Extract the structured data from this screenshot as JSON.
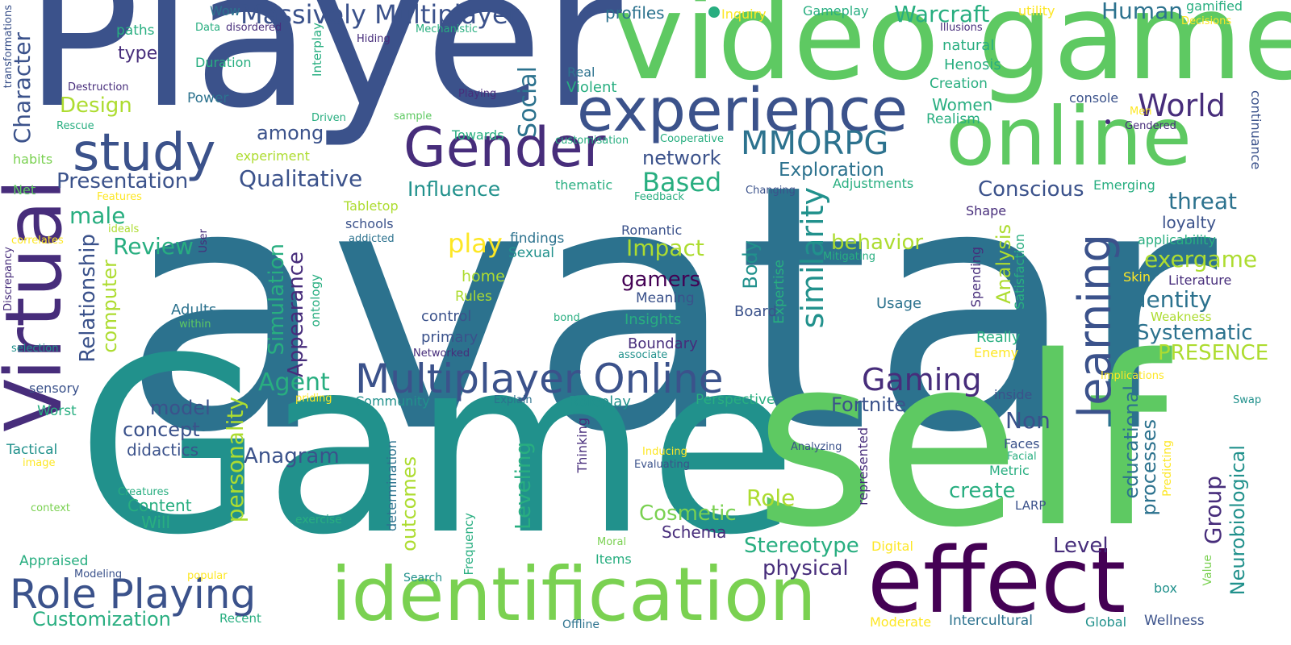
{
  "palette": {
    "purple": "#472d7b",
    "dark_purple": "#440154",
    "indigo": "#3b528b",
    "blue": "#2c728e",
    "teal": "#21918c",
    "sea": "#28ae80",
    "green": "#5ec962",
    "light_green": "#7ad151",
    "lime": "#addc30",
    "yellow": "#fde725"
  },
  "words": [
    {
      "text": "avatar",
      "color": "blue"
    },
    {
      "text": "Player",
      "color": "indigo"
    },
    {
      "text": "Game",
      "color": "teal"
    },
    {
      "text": "self",
      "color": "green"
    },
    {
      "text": "video game",
      "color": "green"
    },
    {
      "text": "online",
      "color": "green"
    },
    {
      "text": "experience",
      "color": "indigo"
    },
    {
      "text": "effect",
      "color": "dark_purple"
    },
    {
      "text": "identification",
      "color": "light_green"
    },
    {
      "text": "Virtual",
      "color": "purple"
    },
    {
      "text": "study",
      "color": "indigo"
    },
    {
      "text": "Gender",
      "color": "purple"
    },
    {
      "text": "learning",
      "color": "indigo"
    },
    {
      "text": "Multiplayer Online",
      "color": "indigo"
    },
    {
      "text": "Role Playing",
      "color": "indigo"
    },
    {
      "text": "Massively Multiplayer",
      "color": "indigo"
    },
    {
      "text": "MMORPG",
      "color": "blue"
    },
    {
      "text": "Gaming",
      "color": "purple"
    },
    {
      "text": "World",
      "color": "purple"
    },
    {
      "text": "similarity",
      "color": "teal"
    },
    {
      "text": "Warcraft",
      "color": "sea"
    },
    {
      "text": "Human",
      "color": "blue"
    },
    {
      "text": "threat",
      "color": "blue"
    },
    {
      "text": "exergame",
      "color": "lime"
    },
    {
      "text": "identity",
      "color": "blue"
    },
    {
      "text": "Systematic",
      "color": "blue"
    },
    {
      "text": "PRESENCE",
      "color": "lime"
    },
    {
      "text": "Qualitative",
      "color": "indigo"
    },
    {
      "text": "Presentation",
      "color": "indigo"
    },
    {
      "text": "Based",
      "color": "sea"
    },
    {
      "text": "Influence",
      "color": "teal"
    },
    {
      "text": "Exploration",
      "color": "blue"
    },
    {
      "text": "Conscious",
      "color": "indigo"
    },
    {
      "text": "Character",
      "color": "indigo"
    },
    {
      "text": "Design",
      "color": "lime"
    },
    {
      "text": "Social",
      "color": "blue"
    },
    {
      "text": "among",
      "color": "indigo"
    },
    {
      "text": "network",
      "color": "indigo"
    },
    {
      "text": "male",
      "color": "sea"
    },
    {
      "text": "Review",
      "color": "sea"
    },
    {
      "text": "play",
      "color": "yellow"
    },
    {
      "text": "behavior",
      "color": "lime"
    },
    {
      "text": "Impact",
      "color": "lime"
    },
    {
      "text": "gamers",
      "color": "dark_purple"
    },
    {
      "text": "Agent",
      "color": "sea"
    },
    {
      "text": "Appearance",
      "color": "purple"
    },
    {
      "text": "Relationship",
      "color": "indigo"
    },
    {
      "text": "computer",
      "color": "lime"
    },
    {
      "text": "Simulation",
      "color": "sea"
    },
    {
      "text": "personality",
      "color": "lime"
    },
    {
      "text": "Fortnite",
      "color": "indigo"
    },
    {
      "text": "Non",
      "color": "indigo"
    },
    {
      "text": "Leveling",
      "color": "sea"
    },
    {
      "text": "Anagram",
      "color": "indigo"
    },
    {
      "text": "Role",
      "color": "lime"
    },
    {
      "text": "Cosmetic",
      "color": "light_green"
    },
    {
      "text": "Stereotype",
      "color": "sea"
    },
    {
      "text": "physical",
      "color": "purple"
    },
    {
      "text": "create",
      "color": "sea"
    },
    {
      "text": "Level",
      "color": "purple"
    },
    {
      "text": "Group",
      "color": "purple"
    },
    {
      "text": "Customization",
      "color": "sea"
    },
    {
      "text": "concept",
      "color": "indigo"
    },
    {
      "text": "model",
      "color": "indigo"
    },
    {
      "text": "didactics",
      "color": "indigo"
    },
    {
      "text": "outcomes",
      "color": "lime"
    },
    {
      "text": "Content",
      "color": "sea"
    },
    {
      "text": "Will",
      "color": "sea"
    },
    {
      "text": "Schema",
      "color": "purple"
    },
    {
      "text": "Body",
      "color": "teal"
    },
    {
      "text": "Analysis",
      "color": "lime"
    },
    {
      "text": "educational",
      "color": "blue"
    },
    {
      "text": "processes",
      "color": "blue"
    },
    {
      "text": "Neurobiological",
      "color": "teal"
    },
    {
      "text": "Adults",
      "color": "blue"
    },
    {
      "text": "Sexual",
      "color": "teal"
    },
    {
      "text": "findings",
      "color": "blue"
    },
    {
      "text": "Romantic",
      "color": "indigo"
    },
    {
      "text": "Boundary",
      "color": "purple"
    },
    {
      "text": "Insights",
      "color": "sea"
    },
    {
      "text": "Meaning",
      "color": "indigo"
    },
    {
      "text": "control",
      "color": "indigo"
    },
    {
      "text": "primary",
      "color": "indigo"
    },
    {
      "text": "Rules",
      "color": "lime"
    },
    {
      "text": "home",
      "color": "lime"
    },
    {
      "text": "Community",
      "color": "teal"
    },
    {
      "text": "Roleplay",
      "color": "teal"
    },
    {
      "text": "Perspective",
      "color": "sea"
    },
    {
      "text": "Tabletop",
      "color": "lime"
    },
    {
      "text": "schools",
      "color": "indigo"
    },
    {
      "text": "thematic",
      "color": "sea"
    },
    {
      "text": "Adjustments",
      "color": "sea"
    },
    {
      "text": "Emerging",
      "color": "sea"
    },
    {
      "text": "loyalty",
      "color": "indigo"
    },
    {
      "text": "applicability",
      "color": "sea"
    },
    {
      "text": "Literature",
      "color": "purple"
    },
    {
      "text": "Skin",
      "color": "yellow"
    },
    {
      "text": "Weakness",
      "color": "lime"
    },
    {
      "text": "Enemy",
      "color": "yellow"
    },
    {
      "text": "Really",
      "color": "sea"
    },
    {
      "text": "Usage",
      "color": "blue"
    },
    {
      "text": "Board",
      "color": "indigo"
    },
    {
      "text": "Expertise",
      "color": "sea"
    },
    {
      "text": "Shape",
      "color": "purple"
    },
    {
      "text": "Satisfaction",
      "color": "sea"
    },
    {
      "text": "Spending",
      "color": "purple"
    },
    {
      "text": "Women",
      "color": "sea"
    },
    {
      "text": "Realism",
      "color": "sea"
    },
    {
      "text": "Creation",
      "color": "sea"
    },
    {
      "text": "Henosis",
      "color": "sea"
    },
    {
      "text": "natural",
      "color": "sea"
    },
    {
      "text": "console",
      "color": "indigo"
    },
    {
      "text": "gamified",
      "color": "sea"
    },
    {
      "text": "utility",
      "color": "yellow"
    },
    {
      "text": "Decisions",
      "color": "yellow"
    },
    {
      "text": "Illusions",
      "color": "purple"
    },
    {
      "text": "Gameplay",
      "color": "sea"
    },
    {
      "text": "Inquiry",
      "color": "yellow"
    },
    {
      "text": "profiles",
      "color": "blue"
    },
    {
      "text": "Wow",
      "color": "blue"
    },
    {
      "text": "Mechanistic",
      "color": "sea"
    },
    {
      "text": "Hiding",
      "color": "purple"
    },
    {
      "text": "disordered",
      "color": "purple"
    },
    {
      "text": "Data",
      "color": "sea"
    },
    {
      "text": "Interplay",
      "color": "sea"
    },
    {
      "text": "paths",
      "color": "sea"
    },
    {
      "text": "type",
      "color": "purple"
    },
    {
      "text": "Duration",
      "color": "sea"
    },
    {
      "text": "Destruction",
      "color": "purple"
    },
    {
      "text": "Power",
      "color": "blue"
    },
    {
      "text": "Real",
      "color": "blue"
    },
    {
      "text": "Violent",
      "color": "sea"
    },
    {
      "text": "Playing",
      "color": "purple"
    },
    {
      "text": "Driven",
      "color": "sea"
    },
    {
      "text": "sample",
      "color": "green"
    },
    {
      "text": "Rescue",
      "color": "sea"
    },
    {
      "text": "experiment",
      "color": "lime"
    },
    {
      "text": "habits",
      "color": "light_green"
    },
    {
      "text": "Net",
      "color": "green"
    },
    {
      "text": "Features",
      "color": "yellow"
    },
    {
      "text": "ideals",
      "color": "lime"
    },
    {
      "text": "correlates",
      "color": "yellow"
    },
    {
      "text": "addicted",
      "color": "blue"
    },
    {
      "text": "User",
      "color": "purple"
    },
    {
      "text": "Discrepancy",
      "color": "purple"
    },
    {
      "text": "within",
      "color": "green"
    },
    {
      "text": "selection",
      "color": "teal"
    },
    {
      "text": "sensory",
      "color": "indigo"
    },
    {
      "text": "Worst",
      "color": "sea"
    },
    {
      "text": "Tactical",
      "color": "teal"
    },
    {
      "text": "image",
      "color": "yellow"
    },
    {
      "text": "Creatures",
      "color": "sea"
    },
    {
      "text": "context",
      "color": "light_green"
    },
    {
      "text": "Appraised",
      "color": "sea"
    },
    {
      "text": "Modeling",
      "color": "indigo"
    },
    {
      "text": "popular",
      "color": "yellow"
    },
    {
      "text": "Recent",
      "color": "sea"
    },
    {
      "text": "Offline",
      "color": "blue"
    },
    {
      "text": "Search",
      "color": "teal"
    },
    {
      "text": "Moderate",
      "color": "yellow"
    },
    {
      "text": "Intercultural",
      "color": "blue"
    },
    {
      "text": "Global",
      "color": "teal"
    },
    {
      "text": "Wellness",
      "color": "indigo"
    },
    {
      "text": "Digital",
      "color": "yellow"
    },
    {
      "text": "Items",
      "color": "sea"
    },
    {
      "text": "Moral",
      "color": "light_green"
    },
    {
      "text": "Frequency",
      "color": "sea"
    },
    {
      "text": "determination",
      "color": "blue"
    },
    {
      "text": "represented",
      "color": "purple"
    },
    {
      "text": "exercise",
      "color": "sea"
    },
    {
      "text": "Evaluating",
      "color": "indigo"
    },
    {
      "text": "Inducing",
      "color": "yellow"
    },
    {
      "text": "Analyzing",
      "color": "indigo"
    },
    {
      "text": "Thinking",
      "color": "purple"
    },
    {
      "text": "Explain",
      "color": "blue"
    },
    {
      "text": "priding",
      "color": "yellow"
    },
    {
      "text": "inside",
      "color": "indigo"
    },
    {
      "text": "Faces",
      "color": "indigo"
    },
    {
      "text": "Facial",
      "color": "sea"
    },
    {
      "text": "Metric",
      "color": "sea"
    },
    {
      "text": "Predicting",
      "color": "yellow"
    },
    {
      "text": "LARP",
      "color": "indigo"
    },
    {
      "text": "box",
      "color": "teal"
    },
    {
      "text": "Value",
      "color": "light_green"
    },
    {
      "text": "Implications",
      "color": "yellow"
    },
    {
      "text": "Swap",
      "color": "teal"
    },
    {
      "text": "Mitigating",
      "color": "sea"
    },
    {
      "text": "Changing",
      "color": "indigo"
    },
    {
      "text": "Feedback",
      "color": "sea"
    },
    {
      "text": "Cooperative",
      "color": "sea"
    },
    {
      "text": "customisation",
      "color": "sea"
    },
    {
      "text": "Towards",
      "color": "sea"
    },
    {
      "text": "associate",
      "color": "teal"
    },
    {
      "text": "Networked",
      "color": "purple"
    },
    {
      "text": "bond",
      "color": "sea"
    },
    {
      "text": "ontology",
      "color": "sea"
    },
    {
      "text": "transformations",
      "color": "indigo"
    },
    {
      "text": "Men",
      "color": "yellow"
    },
    {
      "text": "Gendered",
      "color": "purple"
    },
    {
      "text": "continuance",
      "color": "indigo"
    }
  ]
}
